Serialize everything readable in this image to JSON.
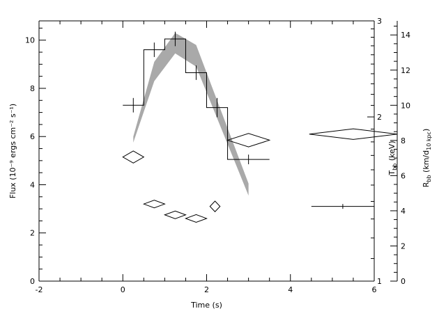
{
  "chart_data": {
    "type": "line",
    "xlabel": "Time (s)",
    "ylabel_left": "Flux (10⁻⁹ ergs cm⁻² s⁻¹)",
    "ylabel_right_inner_main": "T",
    "ylabel_right_inner_sub": "bb",
    "ylabel_right_inner_unit": " (keV)",
    "ylabel_right_outer_main": "R",
    "ylabel_right_outer_sub": "bb",
    "ylabel_right_outer_unit_pre": " (km/d",
    "ylabel_right_outer_unit_sub": "10 kpc",
    "ylabel_right_outer_unit_post": ")",
    "xlim": [
      -2,
      6
    ],
    "ylim_flux": [
      0,
      10.8
    ],
    "ylim_temperature_log": [
      1,
      3
    ],
    "ylim_radius": [
      0,
      14.8
    ],
    "grid": false,
    "x_ticks": [
      "-2",
      "0",
      "2",
      "4",
      "6"
    ],
    "flux_ticks": [
      "0",
      "2",
      "4",
      "6",
      "8",
      "10"
    ],
    "temp_ticks": [
      "1",
      "2",
      "3"
    ],
    "radius_ticks": [
      "0",
      "2",
      "4",
      "6",
      "8",
      "10",
      "12",
      "14"
    ],
    "series": [
      {
        "kind": "histogram",
        "bins": [
          {
            "x0": 0.0,
            "x1": 0.5,
            "y": 7.3,
            "yerr": 0.3
          },
          {
            "x0": 0.5,
            "x1": 1.0,
            "y": 9.6,
            "yerr": 0.3
          },
          {
            "x0": 1.0,
            "x1": 1.5,
            "y": 10.05,
            "yerr": 0.3
          },
          {
            "x0": 1.5,
            "x1": 2.0,
            "y": 8.65,
            "yerr": 0.3
          },
          {
            "x0": 2.0,
            "x1": 2.5,
            "y": 7.2,
            "yerr": 0.4
          },
          {
            "x0": 2.5,
            "x1": 3.5,
            "y": 5.05,
            "yerr": 0.2
          },
          {
            "x0": 4.5,
            "x1": 6.0,
            "y": 3.1,
            "yerr": 0.1
          }
        ]
      },
      {
        "kind": "band",
        "x": [
          0.25,
          0.75,
          1.25,
          1.75,
          3.0
        ],
        "y_upper": [
          6.0,
          9.1,
          10.3,
          9.8,
          4.05
        ],
        "y_lower": [
          5.75,
          8.3,
          9.45,
          8.9,
          3.55
        ]
      },
      {
        "kind": "diamonds",
        "points": [
          {
            "x": 0.25,
            "y": 5.15,
            "xerr": 0.25,
            "yerr": 0.25
          },
          {
            "x": 0.75,
            "y": 3.2,
            "xerr": 0.25,
            "yerr": 0.16
          },
          {
            "x": 1.25,
            "y": 2.75,
            "xerr": 0.25,
            "yerr": 0.16
          },
          {
            "x": 1.75,
            "y": 2.6,
            "xerr": 0.25,
            "yerr": 0.16
          },
          {
            "x": 2.2,
            "y": 3.1,
            "xerr": 0.12,
            "yerr": 0.22
          },
          {
            "x": 3.0,
            "y": 5.85,
            "xerr": 0.5,
            "yerr": 0.28
          },
          {
            "x": 5.5,
            "y": 6.1,
            "xerr": 1.05,
            "yerr": 0.22
          }
        ]
      }
    ]
  }
}
